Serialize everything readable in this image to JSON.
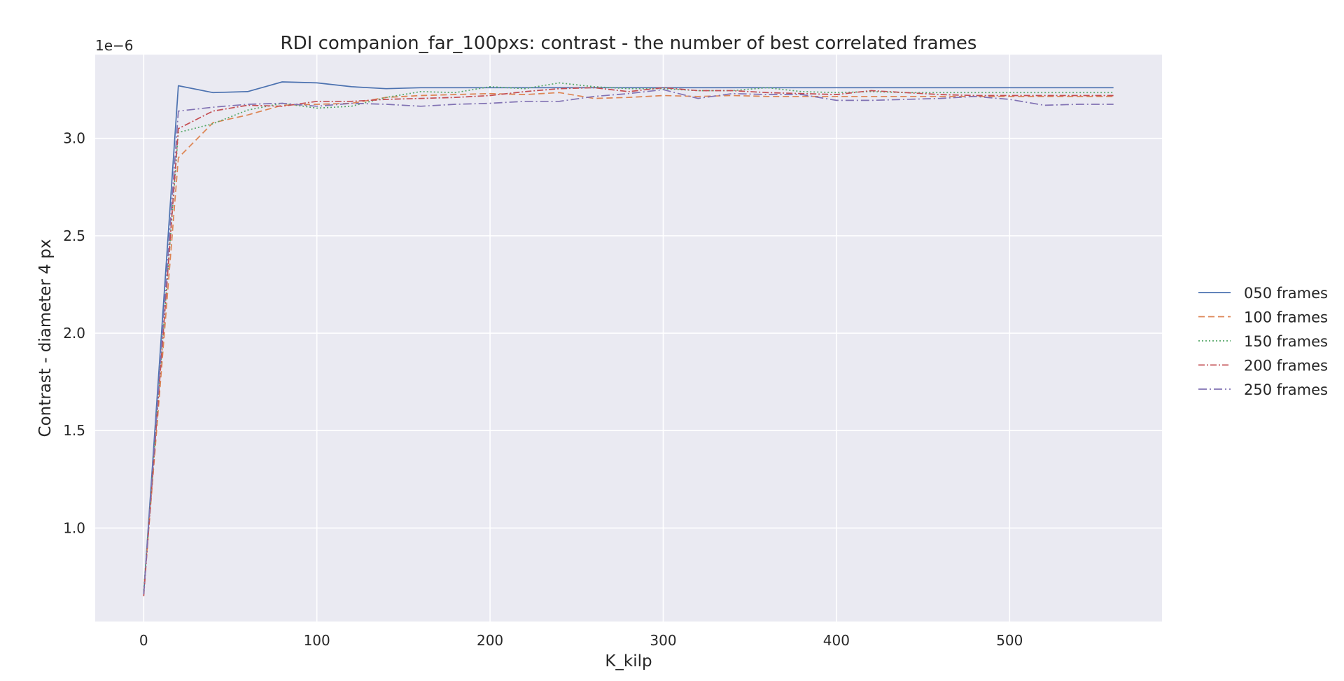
{
  "chart_data": {
    "type": "line",
    "title": "RDI companion_far_100pxs: contrast - the number of best correlated frames",
    "xlabel": "K_kilp",
    "ylabel": "Contrast - diameter 4 px",
    "y_offset_label": "1e−6",
    "xlim": [
      -28,
      588
    ],
    "ylim": [
      0.52,
      3.43
    ],
    "xticks": [
      0,
      100,
      200,
      300,
      400,
      500
    ],
    "yticks": [
      1.0,
      1.5,
      2.0,
      2.5,
      3.0
    ],
    "x_tick_labels": [
      "0",
      "100",
      "200",
      "300",
      "400",
      "500"
    ],
    "y_tick_labels": [
      "1.0",
      "1.5",
      "2.0",
      "2.5",
      "3.0"
    ],
    "grid": true,
    "legend_placement": "right, outside plot",
    "x": [
      0,
      20,
      40,
      60,
      80,
      100,
      120,
      140,
      160,
      180,
      200,
      220,
      240,
      260,
      280,
      300,
      320,
      340,
      360,
      380,
      400,
      420,
      440,
      460,
      480,
      500,
      520,
      540,
      560
    ],
    "series": [
      {
        "name": "050 frames",
        "color": "#4c72b0",
        "dash": "",
        "values": [
          0.66,
          3.27,
          3.235,
          3.24,
          3.29,
          3.285,
          3.265,
          3.255,
          3.26,
          3.26,
          3.26,
          3.26,
          3.26,
          3.26,
          3.26,
          3.26,
          3.26,
          3.26,
          3.26,
          3.26,
          3.26,
          3.26,
          3.26,
          3.26,
          3.26,
          3.26,
          3.26,
          3.26,
          3.26
        ]
      },
      {
        "name": "100 frames",
        "color": "#dd8452",
        "dash": "9,5",
        "values": [
          0.67,
          2.9,
          3.08,
          3.12,
          3.17,
          3.175,
          3.18,
          3.21,
          3.22,
          3.225,
          3.23,
          3.225,
          3.235,
          3.205,
          3.21,
          3.22,
          3.215,
          3.22,
          3.215,
          3.215,
          3.215,
          3.215,
          3.215,
          3.215,
          3.215,
          3.215,
          3.215,
          3.215,
          3.215
        ]
      },
      {
        "name": "150 frames",
        "color": "#55a868",
        "dash": "2,3",
        "values": [
          0.68,
          3.03,
          3.075,
          3.145,
          3.18,
          3.155,
          3.165,
          3.21,
          3.24,
          3.235,
          3.265,
          3.255,
          3.285,
          3.265,
          3.255,
          3.255,
          3.245,
          3.245,
          3.26,
          3.24,
          3.235,
          3.24,
          3.235,
          3.235,
          3.235,
          3.235,
          3.235,
          3.235,
          3.235
        ]
      },
      {
        "name": "200 frames",
        "color": "#c44e52",
        "dash": "9,3,2,3",
        "values": [
          0.65,
          3.05,
          3.14,
          3.17,
          3.165,
          3.19,
          3.19,
          3.2,
          3.205,
          3.21,
          3.22,
          3.24,
          3.255,
          3.26,
          3.24,
          3.26,
          3.245,
          3.245,
          3.235,
          3.23,
          3.225,
          3.245,
          3.235,
          3.225,
          3.22,
          3.22,
          3.22,
          3.22,
          3.22
        ]
      },
      {
        "name": "250 frames",
        "color": "#8172b3",
        "dash": "12,4,2,4",
        "values": [
          0.66,
          3.14,
          3.16,
          3.175,
          3.18,
          3.165,
          3.18,
          3.175,
          3.165,
          3.175,
          3.18,
          3.19,
          3.19,
          3.215,
          3.23,
          3.25,
          3.205,
          3.23,
          3.225,
          3.225,
          3.195,
          3.195,
          3.2,
          3.205,
          3.215,
          3.2,
          3.17,
          3.175,
          3.175
        ]
      }
    ]
  }
}
